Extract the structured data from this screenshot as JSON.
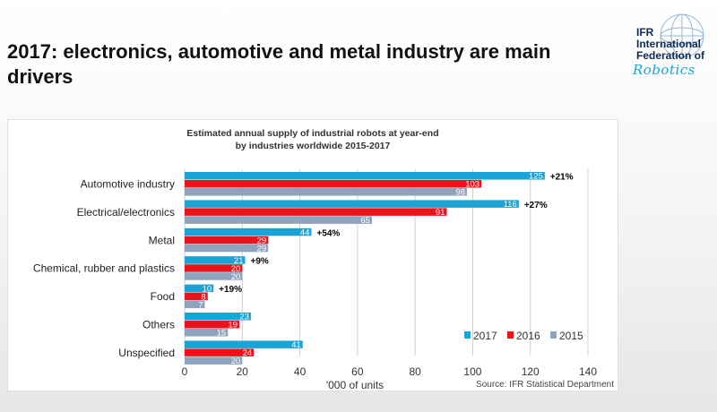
{
  "slide": {
    "title": "2017: electronics, automotive and metal industry are main drivers"
  },
  "logo": {
    "line1": "IFR",
    "line2": "International",
    "line3": "Federation of",
    "script": "Robotics"
  },
  "colors": {
    "s2017": "#1aa3d6",
    "s2016": "#e8141c",
    "s2015": "#8ea3bd",
    "grid": "#cfcfcf"
  },
  "chart_data": {
    "type": "bar",
    "orientation": "horizontal",
    "title_line1": "Estimated annual supply of industrial robots at year-end",
    "title_line2": "by industries worldwide 2015-2017",
    "categories": [
      "Automotive industry",
      "Electrical/electronics",
      "Metal",
      "Chemical, rubber and plastics",
      "Food",
      "Others",
      "Unspecified"
    ],
    "series": [
      {
        "name": "2017",
        "values": [
          125,
          116,
          44,
          21,
          10,
          23,
          41
        ]
      },
      {
        "name": "2016",
        "values": [
          103,
          91,
          29,
          20,
          8,
          19,
          24
        ]
      },
      {
        "name": "2015",
        "values": [
          98,
          65,
          29,
          20,
          7,
          15,
          20
        ]
      }
    ],
    "growth_labels": [
      "+21%",
      "+27%",
      "+54%",
      "+9%",
      "+19%",
      "",
      ""
    ],
    "xlim": [
      0,
      140
    ],
    "xticks": [
      0,
      20,
      40,
      60,
      80,
      100,
      120,
      140
    ],
    "xlabel": "'000 of units",
    "source": "Source: IFR Statistical Department",
    "legend_position": "bottom-right"
  }
}
